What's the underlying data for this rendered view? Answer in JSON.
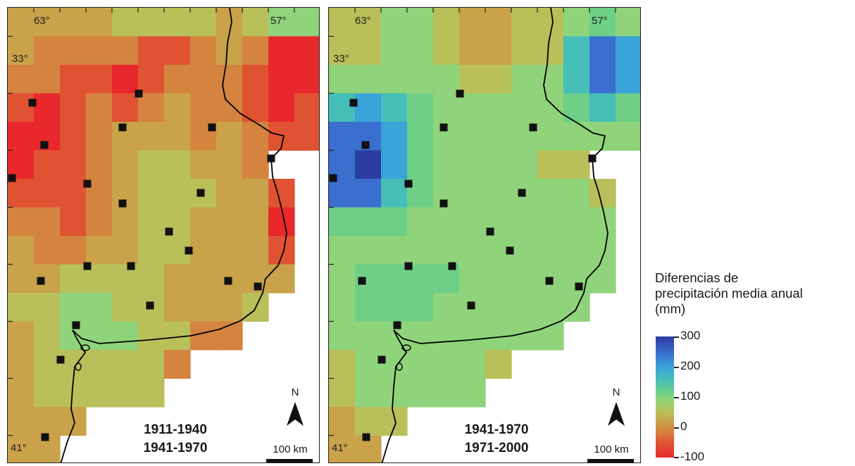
{
  "left_map": {
    "lon_labels": [
      "63°",
      "57°"
    ],
    "lat_labels": [
      "33°",
      "41°"
    ],
    "period_start": "1911-1940",
    "period_end": "1941-1970",
    "north_label": "N",
    "scale_label": "100 km"
  },
  "right_map": {
    "lon_labels": [
      "63°",
      "57°"
    ],
    "lat_labels": [
      "33°",
      "41°"
    ],
    "period_start": "1941-1970",
    "period_end": "1971-2000",
    "north_label": "N",
    "scale_label": "100 km"
  },
  "legend": {
    "title_lines": [
      "Diferencias de",
      "precipitación media anual",
      "(mm)"
    ],
    "ticks": [
      "300",
      "200",
      "100",
      "0",
      "-100"
    ],
    "colors": [
      "#2b3ca0",
      "#3a6fd0",
      "#3aa3d8",
      "#46bfb8",
      "#6ecf86",
      "#8fd37a",
      "#b9c05a",
      "#caa24a",
      "#d4843f",
      "#e05332",
      "#e8282c"
    ]
  },
  "station_marker_color": "#111111",
  "coastline_color": "#000000"
}
